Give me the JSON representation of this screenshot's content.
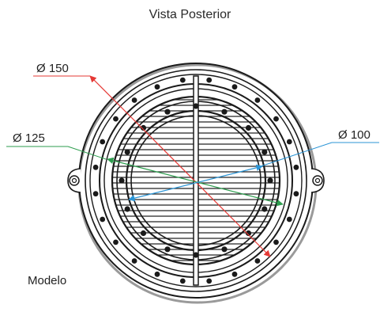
{
  "title": "Vista Posterior",
  "model_label": "Modelo",
  "dimensions": {
    "d150": {
      "label": "Ø 150",
      "color": "#e53935"
    },
    "d125": {
      "label": "Ø 125",
      "color": "#2e9e4f"
    },
    "d100": {
      "label": "Ø 100",
      "color": "#2b95d6"
    }
  },
  "colors": {
    "line": "#1a1a1a",
    "shadow": "#9a9a9a",
    "background": "#ffffff"
  }
}
